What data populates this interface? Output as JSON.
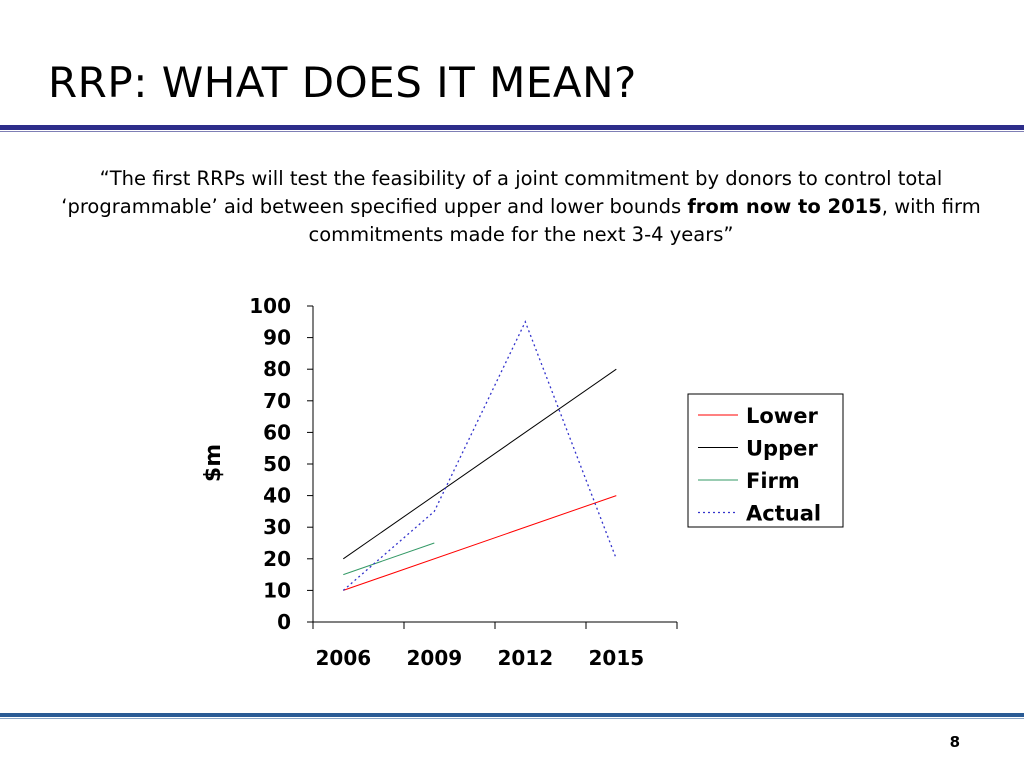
{
  "slide": {
    "title": "RRP: WHAT DOES IT MEAN?",
    "quote_part1": "“The first RRPs will test the feasibility of a joint commitment by donors to control total ‘programmable’ aid between specified upper and lower bounds ",
    "quote_bold": "from now to 2015",
    "quote_part2": ", with firm commitments made for the next 3-4 years”",
    "page_number": "8"
  },
  "chart_data": {
    "type": "line",
    "title": "",
    "xlabel": "",
    "ylabel": "$m",
    "ylim": [
      0,
      100
    ],
    "yticks": [
      0,
      10,
      20,
      30,
      40,
      50,
      60,
      70,
      80,
      90,
      100
    ],
    "xlim": [
      2005,
      2017
    ],
    "xticks": [
      2006,
      2009,
      2012,
      2015
    ],
    "xtick_boundaries": [
      2005,
      2008,
      2011,
      2014,
      2017
    ],
    "grid": false,
    "legend_position": "right",
    "series": [
      {
        "name": "Lower",
        "color": "#ff0000",
        "style": "solid",
        "x": [
          2006,
          2015
        ],
        "y": [
          10,
          40
        ]
      },
      {
        "name": "Upper",
        "color": "#000000",
        "style": "solid",
        "x": [
          2006,
          2015
        ],
        "y": [
          20,
          80
        ]
      },
      {
        "name": "Firm",
        "color": "#339966",
        "style": "solid",
        "x": [
          2006,
          2009
        ],
        "y": [
          15,
          25
        ]
      },
      {
        "name": "Actual",
        "color": "#3333cc",
        "style": "dotted",
        "x": [
          2006,
          2009,
          2012,
          2015
        ],
        "y": [
          10,
          35,
          95,
          20
        ]
      }
    ]
  }
}
